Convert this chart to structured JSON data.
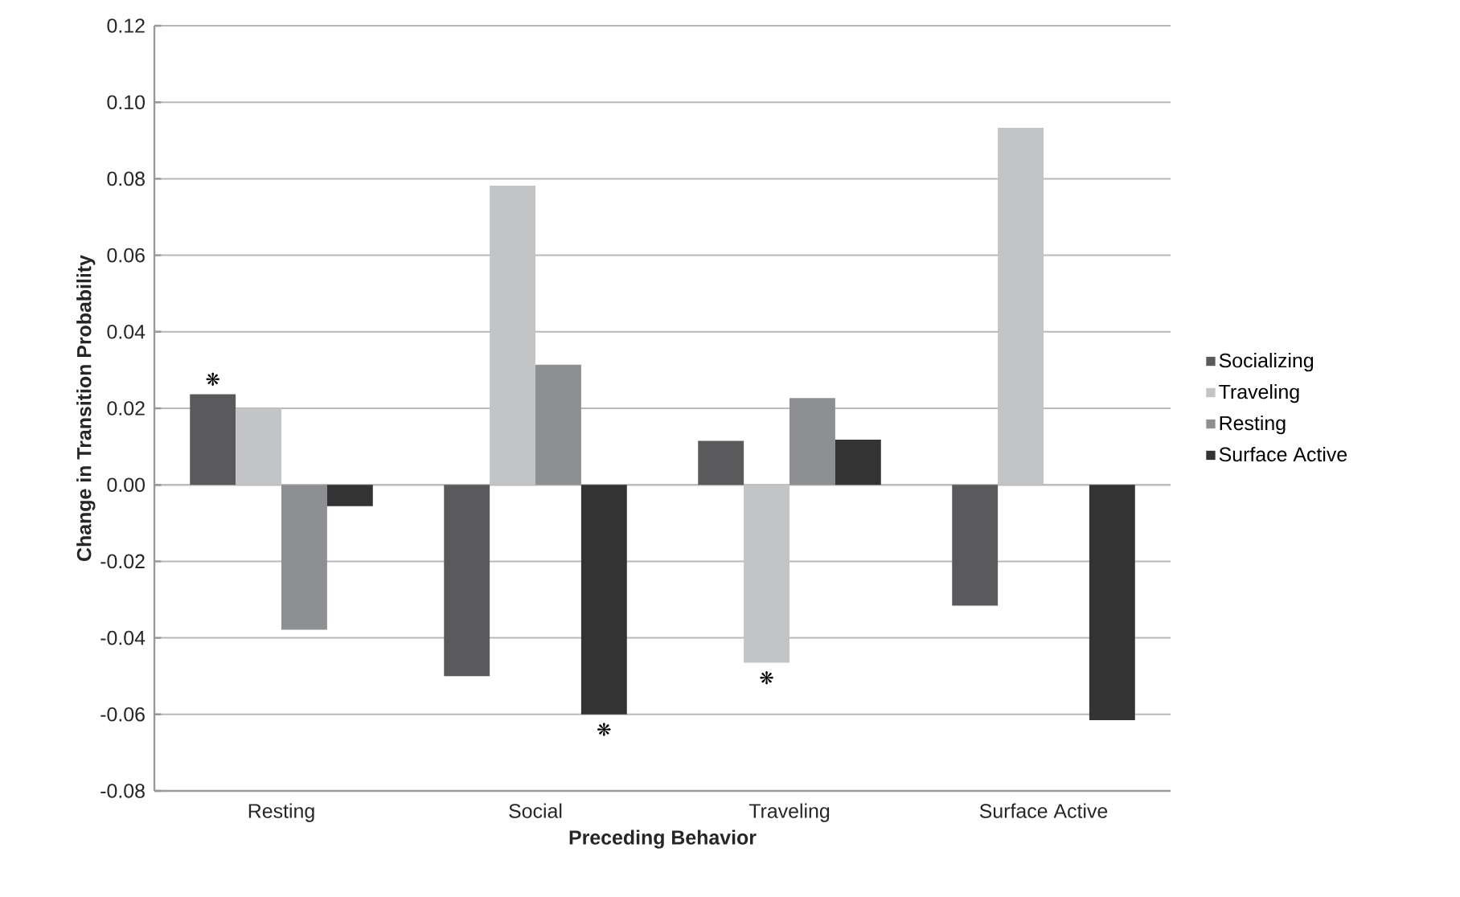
{
  "chart_data": {
    "type": "bar",
    "xlabel": "Preceding Behavior",
    "ylabel": "Change in Transition Probability",
    "categories": [
      "Resting",
      "Social",
      "Traveling",
      "Surface Active"
    ],
    "series": [
      {
        "name": "Socializing",
        "color": "#5a5a5c",
        "values": [
          0.0237,
          -0.05,
          0.0115,
          -0.0316
        ],
        "value_labels": [
          "❋",
          null,
          null,
          null
        ]
      },
      {
        "name": "Traveling",
        "color": "#c3c4c6",
        "values": [
          0.02,
          0.0782,
          -0.0465,
          0.0933
        ],
        "value_labels": [
          null,
          null,
          "❋",
          null
        ]
      },
      {
        "name": "Resting",
        "color": "#8e8f93",
        "values": [
          -0.0379,
          0.0314,
          0.0227,
          null
        ]
      },
      {
        "name": "Surface Active",
        "color": "#333333",
        "values": [
          -0.0056,
          -0.06,
          0.0118,
          -0.0615
        ],
        "value_labels": [
          null,
          "❋",
          null,
          null
        ]
      }
    ],
    "ylim": [
      -0.08,
      0.12
    ],
    "yticks": [
      {
        "value": -0.08,
        "label": "-0.08"
      },
      {
        "value": -0.06,
        "label": "-0.06"
      },
      {
        "value": -0.04,
        "label": "-0.04"
      },
      {
        "value": -0.02,
        "label": "-0.02"
      },
      {
        "value": 0,
        "label": "0.00"
      },
      {
        "value": 0.02,
        "label": "0.02"
      },
      {
        "value": 0.04,
        "label": "0.04"
      },
      {
        "value": 0.06,
        "label": "0.06"
      },
      {
        "value": 0.08,
        "label": "0.08"
      },
      {
        "value": 0.1,
        "label": "0.10"
      },
      {
        "value": 0.12,
        "label": "0.12"
      }
    ],
    "grid": "y",
    "legend": "right"
  }
}
